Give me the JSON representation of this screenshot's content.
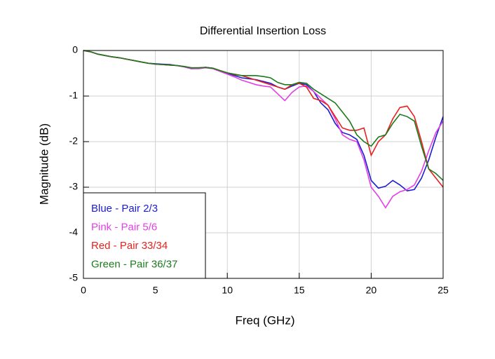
{
  "chart_data": {
    "type": "line",
    "title": "Differential Insertion Loss",
    "x_label": "Freq (GHz)",
    "y_label": "Magnitude (dB)",
    "x": [
      0,
      0.5,
      1,
      1.5,
      2,
      2.5,
      3,
      3.5,
      4,
      4.5,
      5,
      5.5,
      6,
      6.5,
      7,
      7.5,
      8,
      8.5,
      9,
      9.5,
      10,
      10.5,
      11,
      11.5,
      12,
      12.5,
      13,
      13.5,
      14,
      14.5,
      15,
      15.5,
      16,
      16.5,
      17,
      17.5,
      18,
      18.5,
      19,
      19.5,
      20,
      20.5,
      21,
      21.5,
      22,
      22.5,
      23,
      23.5,
      24,
      24.5,
      25
    ],
    "series": [
      {
        "name": "Blue - Pair 2/3",
        "color": "#1c1cd0",
        "values": [
          0,
          -0.03,
          -0.08,
          -0.11,
          -0.14,
          -0.16,
          -0.19,
          -0.22,
          -0.25,
          -0.28,
          -0.29,
          -0.3,
          -0.31,
          -0.33,
          -0.36,
          -0.4,
          -0.39,
          -0.37,
          -0.39,
          -0.45,
          -0.5,
          -0.55,
          -0.6,
          -0.62,
          -0.64,
          -0.68,
          -0.72,
          -0.8,
          -0.85,
          -0.78,
          -0.72,
          -0.75,
          -0.9,
          -1.15,
          -1.3,
          -1.6,
          -1.8,
          -1.85,
          -1.95,
          -2.3,
          -2.85,
          -3.02,
          -2.98,
          -2.85,
          -2.95,
          -3.08,
          -3.05,
          -2.8,
          -2.4,
          -1.9,
          -1.45
        ]
      },
      {
        "name": "Pink - Pair 5/6",
        "color": "#e23fe6",
        "values": [
          0,
          -0.03,
          -0.08,
          -0.11,
          -0.14,
          -0.16,
          -0.19,
          -0.22,
          -0.25,
          -0.28,
          -0.3,
          -0.31,
          -0.32,
          -0.33,
          -0.36,
          -0.4,
          -0.4,
          -0.38,
          -0.4,
          -0.46,
          -0.52,
          -0.58,
          -0.65,
          -0.7,
          -0.75,
          -0.78,
          -0.8,
          -0.95,
          -1.1,
          -0.92,
          -0.8,
          -0.78,
          -0.9,
          -1.05,
          -1.2,
          -1.5,
          -1.85,
          -1.95,
          -2.0,
          -2.4,
          -3.0,
          -3.2,
          -3.45,
          -3.2,
          -3.1,
          -3.05,
          -2.95,
          -2.65,
          -2.2,
          -1.8,
          -1.55
        ]
      },
      {
        "name": "Red - Pair 33/34",
        "color": "#e8201e",
        "values": [
          0,
          -0.03,
          -0.08,
          -0.11,
          -0.14,
          -0.16,
          -0.19,
          -0.22,
          -0.25,
          -0.28,
          -0.3,
          -0.31,
          -0.32,
          -0.33,
          -0.35,
          -0.38,
          -0.38,
          -0.37,
          -0.39,
          -0.44,
          -0.49,
          -0.53,
          -0.55,
          -0.6,
          -0.65,
          -0.7,
          -0.75,
          -0.8,
          -0.85,
          -0.75,
          -0.72,
          -0.8,
          -1.05,
          -1.1,
          -1.2,
          -1.45,
          -1.7,
          -1.75,
          -1.75,
          -1.7,
          -2.3,
          -2.0,
          -1.85,
          -1.5,
          -1.25,
          -1.22,
          -1.45,
          -2.0,
          -2.6,
          -2.8,
          -3.0
        ]
      },
      {
        "name": "Green - Pair 36/37",
        "color": "#1c7a1c",
        "values": [
          0,
          -0.03,
          -0.08,
          -0.11,
          -0.14,
          -0.16,
          -0.19,
          -0.22,
          -0.25,
          -0.28,
          -0.3,
          -0.31,
          -0.32,
          -0.33,
          -0.35,
          -0.38,
          -0.38,
          -0.37,
          -0.39,
          -0.44,
          -0.49,
          -0.52,
          -0.55,
          -0.55,
          -0.55,
          -0.57,
          -0.6,
          -0.7,
          -0.75,
          -0.75,
          -0.7,
          -0.72,
          -0.85,
          -0.95,
          -1.05,
          -1.15,
          -1.35,
          -1.55,
          -1.85,
          -2.0,
          -2.1,
          -1.9,
          -1.85,
          -1.6,
          -1.4,
          -1.45,
          -1.55,
          -2.1,
          -2.6,
          -2.7,
          -2.85
        ]
      }
    ],
    "xlim": [
      0,
      25
    ],
    "xticks": [
      0,
      5,
      10,
      15,
      20,
      25
    ],
    "ylim": [
      -5,
      0
    ],
    "yticks": [
      0,
      -1,
      -2,
      -3,
      -4,
      -5
    ],
    "grid": true,
    "legend": "lower left"
  }
}
